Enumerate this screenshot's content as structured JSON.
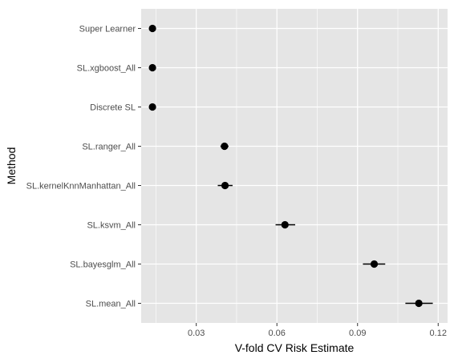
{
  "chart_data": {
    "type": "scatter",
    "title": "",
    "xlabel": "V-fold CV Risk Estimate",
    "ylabel": "Method",
    "x_ticks": [
      0.03,
      0.06,
      0.09,
      0.12
    ],
    "x_tick_labels": [
      "0.03",
      "0.06",
      "0.09",
      "0.12"
    ],
    "xlim": [
      0.0095,
      0.1235
    ],
    "grid": true,
    "legend": "none",
    "categories": [
      "Super Learner",
      "SL.xgboost_All",
      "Discrete SL",
      "SL.ranger_All",
      "SL.kernelKnnManhattan_All",
      "SL.ksvm_All",
      "SL.bayesglm_All",
      "SL.mean_All"
    ],
    "points": [
      {
        "method": "Super Learner",
        "x": 0.0137,
        "lower": 0.0137,
        "upper": 0.0137
      },
      {
        "method": "SL.xgboost_All",
        "x": 0.0137,
        "lower": 0.0137,
        "upper": 0.0137
      },
      {
        "method": "Discrete SL",
        "x": 0.0137,
        "lower": 0.0137,
        "upper": 0.0137
      },
      {
        "method": "SL.ranger_All",
        "x": 0.0405,
        "lower": 0.039,
        "upper": 0.042
      },
      {
        "method": "SL.kernelKnnManhattan_All",
        "x": 0.0407,
        "lower": 0.038,
        "upper": 0.0435
      },
      {
        "method": "SL.ksvm_All",
        "x": 0.063,
        "lower": 0.0595,
        "upper": 0.0668
      },
      {
        "method": "SL.bayesglm_All",
        "x": 0.0962,
        "lower": 0.092,
        "upper": 0.1003
      },
      {
        "method": "SL.mean_All",
        "x": 0.1128,
        "lower": 0.1078,
        "upper": 0.118
      }
    ]
  },
  "colors": {
    "panel_background": "#e5e5e5",
    "grid_major": "#ffffff",
    "point": "#000000",
    "tick_text": "#4d4d4d",
    "axis_title": "#000000"
  }
}
